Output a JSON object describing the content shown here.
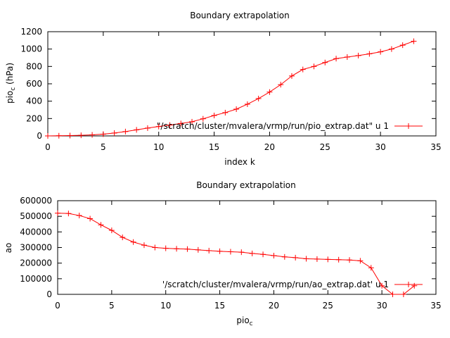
{
  "colors": {
    "series": "#ff0000",
    "axis": "#000000",
    "background": "#ffffff"
  },
  "chart_data": [
    {
      "type": "line",
      "title": "Boundary extrapolation",
      "xlabel": "index k",
      "ylabel_main": "pio",
      "ylabel_sub": "c",
      "ylabel_tail": " (hPa)",
      "xlim": [
        0,
        35
      ],
      "ylim": [
        0,
        1200
      ],
      "xticks": [
        0,
        5,
        10,
        15,
        20,
        25,
        30,
        35
      ],
      "yticks": [
        0,
        200,
        400,
        600,
        800,
        1000,
        1200
      ],
      "grid": false,
      "legend_position": "bottom-right",
      "series": [
        {
          "name": "\"/scratch/cluster/mvalera/vrmp/run/pio_extrap.dat\" u 1",
          "x": [
            0,
            1,
            2,
            3,
            4,
            5,
            6,
            7,
            8,
            9,
            10,
            11,
            12,
            13,
            14,
            15,
            16,
            17,
            18,
            19,
            20,
            21,
            22,
            23,
            24,
            25,
            26,
            27,
            28,
            29,
            30,
            31,
            32,
            33
          ],
          "y": [
            0,
            2,
            4,
            7,
            12,
            20,
            33,
            50,
            70,
            90,
            108,
            125,
            143,
            163,
            197,
            235,
            268,
            308,
            365,
            430,
            505,
            590,
            690,
            765,
            800,
            845,
            890,
            908,
            925,
            945,
            968,
            1000,
            1045,
            1090
          ]
        }
      ]
    },
    {
      "type": "line",
      "title": "Boundary extrapolation",
      "xlabel_main": "pio",
      "xlabel_sub": "c",
      "ylabel": "ao",
      "xlim": [
        0,
        35
      ],
      "ylim": [
        0,
        600000
      ],
      "xticks": [
        0,
        5,
        10,
        15,
        20,
        25,
        30,
        35
      ],
      "yticks": [
        0,
        100000,
        200000,
        300000,
        400000,
        500000,
        600000
      ],
      "grid": false,
      "legend_position": "bottom-right",
      "series": [
        {
          "name": "'/scratch/cluster/mvalera/vrmp/run/ao_extrap.dat' u 1",
          "x": [
            0,
            1,
            2,
            3,
            4,
            5,
            6,
            7,
            8,
            9,
            10,
            11,
            12,
            13,
            14,
            15,
            16,
            17,
            18,
            19,
            20,
            21,
            22,
            23,
            24,
            25,
            26,
            27,
            28,
            29,
            30,
            31,
            32,
            33
          ],
          "y": [
            520000,
            518000,
            505000,
            485000,
            445000,
            410000,
            365000,
            335000,
            315000,
            300000,
            295000,
            292000,
            290000,
            285000,
            280000,
            276000,
            273000,
            270000,
            262000,
            256000,
            248000,
            240000,
            235000,
            228000,
            226000,
            224000,
            222000,
            220000,
            215000,
            170000,
            55000,
            0,
            0,
            55000
          ]
        }
      ]
    }
  ]
}
